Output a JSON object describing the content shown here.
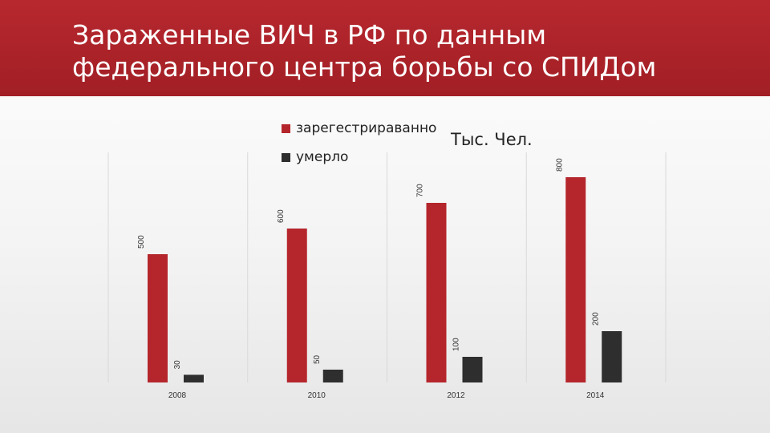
{
  "title": "Зараженные ВИЧ в РФ по данным\nфедерального центра борьбы со СПИДом",
  "colors": {
    "header": "#b7282e",
    "registered": "#b5262c",
    "died": "#2e2e2e"
  },
  "chart_data": {
    "type": "bar",
    "title": "Зараженные ВИЧ в РФ по данным федерального центра борьбы со СПИДом",
    "unit_label": "Тыс. Чел.",
    "xlabel": "",
    "ylabel": "",
    "categories": [
      "2008",
      "2010",
      "2012",
      "2014"
    ],
    "series": [
      {
        "name": "зарегестрираванно",
        "values": [
          500,
          600,
          700,
          800
        ],
        "color": "#b5262c"
      },
      {
        "name": "умерло",
        "values": [
          30,
          50,
          100,
          200
        ],
        "color": "#2e2e2e"
      }
    ],
    "data_labels": [
      [
        "500",
        "600",
        "700",
        "800"
      ],
      [
        "30",
        "50",
        "100",
        "200"
      ]
    ],
    "ylim": [
      0,
      1000
    ],
    "grid": false,
    "legend_position": "top-center"
  }
}
